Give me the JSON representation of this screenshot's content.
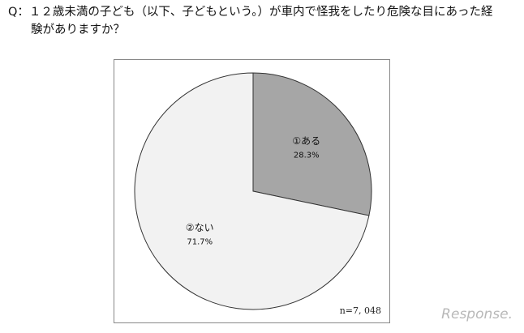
{
  "chart_data": {
    "type": "pie",
    "title": "Q：１２歳未満の子ども（以下、子どもという。）が車内で怪我をしたり危険な目にあった経験がありますか？",
    "categories": [
      "①ある",
      "②ない"
    ],
    "values": [
      28.3,
      71.7
    ],
    "value_labels": [
      "28.3%",
      "71.7%"
    ],
    "colors": [
      "#a6a6a6",
      "#f2f2f2"
    ],
    "annotation": "n=7, 048",
    "watermark": "Response."
  }
}
